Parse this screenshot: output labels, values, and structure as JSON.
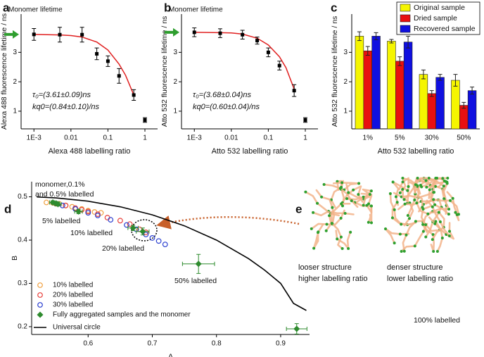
{
  "chart_data": [
    {
      "type": "scatter",
      "panel": "a",
      "xlabel": "Alexa 488 labelling ratio",
      "ylabel": "Alexa 488 fluorescence lifetime / ns",
      "xscale": "log",
      "xlim": [
        0.00045,
        2.2
      ],
      "xticks": [
        {
          "value": 0.001,
          "label": "1E-3"
        },
        0.01,
        0.1,
        1
      ],
      "ylim": [
        0.4,
        4.3
      ],
      "yticks": [
        1,
        2,
        3
      ],
      "x": [
        0.001,
        0.005,
        0.02,
        0.05,
        0.1,
        0.2,
        0.5,
        1
      ],
      "values": [
        3.61,
        3.6,
        3.6,
        2.95,
        2.7,
        2.2,
        1.55,
        0.7
      ],
      "errors": [
        0.2,
        0.25,
        0.25,
        0.2,
        0.18,
        0.25,
        0.18,
        0.08
      ],
      "color": "#000000",
      "fit": {
        "x": [
          0.001,
          0.005,
          0.01,
          0.02,
          0.05,
          0.1,
          0.2,
          0.3,
          0.5
        ],
        "values": [
          3.61,
          3.59,
          3.57,
          3.52,
          3.35,
          3.08,
          2.6,
          2.22,
          1.55
        ],
        "color": "#e02020"
      },
      "annotation": "Monomer lifetime",
      "annotation_color": "#2e9e2e",
      "monomer_lifetime": 3.61,
      "fit_text": [
        "τ₀=(3.61±0.09)ns",
        "kq0=(0.84±0.10)/ns"
      ]
    },
    {
      "type": "scatter",
      "panel": "b",
      "xlabel": "Atto 532 labelling ratio",
      "ylabel": "Atto 532 fluorescence lifetime / ns",
      "xscale": "log",
      "xlim": [
        0.00045,
        2.2
      ],
      "xticks": [
        {
          "value": 0.001,
          "label": "1E-3"
        },
        0.01,
        0.1,
        1
      ],
      "ylim": [
        0.4,
        4.3
      ],
      "yticks": [
        1,
        2,
        3
      ],
      "x": [
        0.001,
        0.005,
        0.02,
        0.05,
        0.1,
        0.2,
        0.5,
        1
      ],
      "values": [
        3.68,
        3.65,
        3.6,
        3.4,
        3.0,
        2.55,
        1.7,
        0.7
      ],
      "errors": [
        0.15,
        0.15,
        0.15,
        0.12,
        0.15,
        0.15,
        0.2,
        0.08
      ],
      "color": "#000000",
      "fit": {
        "x": [
          0.001,
          0.005,
          0.01,
          0.02,
          0.05,
          0.1,
          0.2,
          0.3,
          0.5
        ],
        "values": [
          3.68,
          3.67,
          3.66,
          3.62,
          3.48,
          3.25,
          2.85,
          2.48,
          1.75
        ],
        "color": "#e02020"
      },
      "annotation": "Monomer lifetime",
      "annotation_color": "#2e9e2e",
      "monomer_lifetime": 3.68,
      "fit_text": [
        "τ₀=(3.68±0.04)ns",
        "kq0=(0.60±0.04)/ns"
      ]
    },
    {
      "type": "bar",
      "panel": "c",
      "xlabel": "Atto 532 labelling ratio",
      "ylabel": "Atto 532 fluorescence lifetime / ns",
      "categories": [
        "1%",
        "5%",
        "30%",
        "50%"
      ],
      "ylim": [
        0.4,
        4.3
      ],
      "yticks": [
        1,
        2,
        3
      ],
      "legend": "upper right",
      "series": [
        {
          "name": "Original sample",
          "color": "#f5f500",
          "values": [
            3.55,
            3.38,
            2.25,
            2.05
          ],
          "errors": [
            0.15,
            0.06,
            0.15,
            0.2
          ]
        },
        {
          "name": "Dried sample",
          "color": "#e81010",
          "values": [
            3.05,
            2.7,
            1.6,
            1.2
          ],
          "errors": [
            0.15,
            0.15,
            0.1,
            0.1
          ]
        },
        {
          "name": "Recovered sample",
          "color": "#1010e0",
          "values": [
            3.55,
            3.35,
            2.15,
            1.7
          ],
          "errors": [
            0.12,
            0.2,
            0.1,
            0.12
          ]
        }
      ]
    },
    {
      "type": "scatter",
      "panel": "d",
      "xlabel": "A",
      "ylabel": "B",
      "xlim": [
        0.512,
        0.945
      ],
      "xticks": [
        0.6,
        0.7,
        0.8,
        0.9
      ],
      "ylim": [
        0.182,
        0.535
      ],
      "yticks": [
        0.2,
        0.3,
        0.4,
        0.5
      ],
      "legend": "lower left",
      "series": [
        {
          "name": "10% labelled",
          "color": "#f0a040",
          "marker": "circle",
          "x": [
            0.535,
            0.545,
            0.555,
            0.565,
            0.575,
            0.59,
            0.6,
            0.61,
            0.62
          ],
          "values": [
            0.487,
            0.486,
            0.484,
            0.48,
            0.477,
            0.472,
            0.468,
            0.465,
            0.463
          ]
        },
        {
          "name": "20% labelled",
          "color": "#e8413c",
          "marker": "circle",
          "x": [
            0.55,
            0.565,
            0.58,
            0.59,
            0.6,
            0.615,
            0.63,
            0.65,
            0.665,
            0.68,
            0.69
          ],
          "values": [
            0.484,
            0.48,
            0.474,
            0.47,
            0.466,
            0.46,
            0.452,
            0.445,
            0.437,
            0.425,
            0.418
          ]
        },
        {
          "name": "30% labelled",
          "color": "#2a3fd0",
          "marker": "circle",
          "x": [
            0.56,
            0.58,
            0.6,
            0.615,
            0.635,
            0.66,
            0.675,
            0.69,
            0.7,
            0.71,
            0.72
          ],
          "values": [
            0.48,
            0.472,
            0.463,
            0.457,
            0.447,
            0.435,
            0.425,
            0.413,
            0.405,
            0.398,
            0.39
          ]
        },
        {
          "name": "Fully aggregated samples and the monomer",
          "color": "#2e8b2e",
          "marker": "diamond",
          "x": [
            0.545,
            0.55,
            0.553,
            0.585,
            0.67,
            0.685,
            0.772,
            0.925
          ],
          "values": [
            0.487,
            0.485,
            0.483,
            0.466,
            0.428,
            0.42,
            0.345,
            0.195
          ],
          "xerr": [
            0.005,
            0.005,
            0.005,
            0.006,
            0.008,
            0.01,
            0.025,
            0.016
          ],
          "yerr": [
            0.004,
            0.004,
            0.004,
            0.005,
            0.006,
            0.008,
            0.022,
            0.012
          ]
        },
        {
          "name": "Universal circle",
          "color": "#000000",
          "marker": "line",
          "x": [
            0.52,
            0.55,
            0.6,
            0.65,
            0.7,
            0.75,
            0.8,
            0.85,
            0.875,
            0.9,
            0.92,
            0.94
          ],
          "values": [
            0.4996,
            0.4975,
            0.4899,
            0.477,
            0.4583,
            0.433,
            0.4,
            0.3571,
            0.3307,
            0.3,
            0.2538,
            0.2375
          ]
        }
      ],
      "annotations": [
        "monomer,0.1%",
        "and 0.5% labelled",
        "5% labelled",
        "10% labelled",
        "20% labelled",
        "50% labelled",
        "100% labelled"
      ],
      "annotation_color": "#2e8b2e"
    }
  ],
  "panel_e": {
    "panel": "e",
    "captions": [
      [
        "looser structure",
        "higher labelling ratio"
      ],
      [
        "denser structure",
        "lower labelling ratio"
      ]
    ]
  }
}
